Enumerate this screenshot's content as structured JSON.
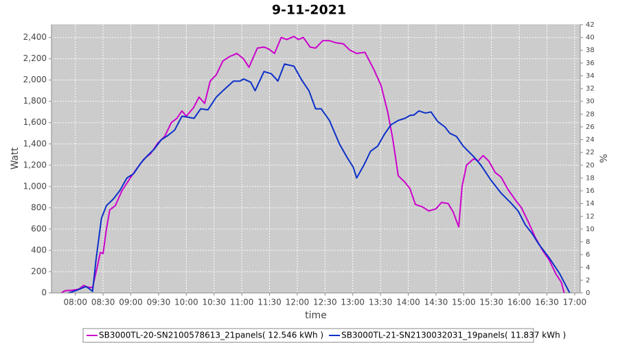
{
  "chart_data": {
    "type": "line",
    "title": "9-11-2021",
    "x_label": "time",
    "y_label": "Watt",
    "y2_label": "%",
    "xlim": [
      7.57,
      17.1
    ],
    "xticks": [
      {
        "value": 8,
        "label": "08:00"
      },
      {
        "value": 8.5,
        "label": "08:30"
      },
      {
        "value": 9,
        "label": "09:00"
      },
      {
        "value": 9.5,
        "label": "09:30"
      },
      {
        "value": 10,
        "label": "10:00"
      },
      {
        "value": 10.5,
        "label": "10:30"
      },
      {
        "value": 11,
        "label": "11:00"
      },
      {
        "value": 11.5,
        "label": "11:30"
      },
      {
        "value": 12,
        "label": "12:00"
      },
      {
        "value": 12.5,
        "label": "12:30"
      },
      {
        "value": 13,
        "label": "13:00"
      },
      {
        "value": 13.5,
        "label": "13:30"
      },
      {
        "value": 14,
        "label": "14:00"
      },
      {
        "value": 14.5,
        "label": "14:30"
      },
      {
        "value": 15,
        "label": "15:00"
      },
      {
        "value": 15.5,
        "label": "15:30"
      },
      {
        "value": 16,
        "label": "16:00"
      },
      {
        "value": 16.5,
        "label": "16:30"
      },
      {
        "value": 17,
        "label": "17:00"
      }
    ],
    "ylim": [
      0,
      2520
    ],
    "yticks": [
      0,
      200,
      400,
      600,
      800,
      {
        "value": 1000,
        "label": "1,000"
      },
      {
        "value": 1200,
        "label": "1,200"
      },
      {
        "value": 1400,
        "label": "1,400"
      },
      {
        "value": 1600,
        "label": "1,600"
      },
      {
        "value": 1800,
        "label": "1,800"
      },
      {
        "value": 2000,
        "label": "2,000"
      },
      {
        "value": 2200,
        "label": "2,200"
      },
      {
        "value": 2400,
        "label": "2,400"
      }
    ],
    "y2lim": [
      0,
      42
    ],
    "y2ticks": [
      0,
      2,
      4,
      6,
      8,
      10,
      12,
      14,
      16,
      18,
      20,
      22,
      24,
      26,
      28,
      30,
      32,
      34,
      36,
      38,
      40,
      42
    ],
    "grid": true,
    "legend": "bottom",
    "series": [
      {
        "name": "SB3000TL-20-SN2100578613_21panels( 12.546 kWh )",
        "color": "#cc00cc",
        "x": [
          7.75,
          7.81,
          7.94,
          8.06,
          8.15,
          8.22,
          8.31,
          8.4,
          8.45,
          8.5,
          8.56,
          8.62,
          8.72,
          8.84,
          8.99,
          9.11,
          9.24,
          9.36,
          9.49,
          9.61,
          9.73,
          9.83,
          9.92,
          10.0,
          10.13,
          10.23,
          10.33,
          10.43,
          10.54,
          10.66,
          10.78,
          10.91,
          11.03,
          11.13,
          11.28,
          11.4,
          11.49,
          11.59,
          11.71,
          11.81,
          11.94,
          12.02,
          12.11,
          12.23,
          12.33,
          12.46,
          12.58,
          12.7,
          12.83,
          12.95,
          13.07,
          13.22,
          13.38,
          13.51,
          13.63,
          13.72,
          13.82,
          13.94,
          14.03,
          14.13,
          14.25,
          14.37,
          14.5,
          14.6,
          14.72,
          14.81,
          14.91,
          14.97,
          15.05,
          15.18,
          15.26,
          15.35,
          15.45,
          15.57,
          15.67,
          15.8,
          15.95,
          16.04,
          16.17,
          16.29,
          16.42,
          16.54,
          16.66,
          16.76,
          16.81
        ],
        "values": [
          0,
          20,
          25,
          35,
          70,
          55,
          50,
          260,
          380,
          370,
          600,
          780,
          820,
          960,
          1080,
          1170,
          1260,
          1310,
          1410,
          1470,
          1600,
          1640,
          1710,
          1660,
          1740,
          1840,
          1780,
          1990,
          2050,
          2180,
          2220,
          2250,
          2200,
          2120,
          2300,
          2310,
          2290,
          2250,
          2400,
          2380,
          2410,
          2380,
          2400,
          2310,
          2300,
          2370,
          2370,
          2350,
          2340,
          2280,
          2250,
          2260,
          2100,
          1950,
          1700,
          1450,
          1100,
          1040,
          980,
          830,
          810,
          770,
          790,
          850,
          840,
          760,
          620,
          1000,
          1200,
          1260,
          1240,
          1290,
          1240,
          1130,
          1090,
          970,
          860,
          800,
          660,
          520,
          400,
          310,
          180,
          100,
          0
        ]
      },
      {
        "name": "SB3000TL-21-SN2130032031_19panels( 11.837 kWh )",
        "color": "#0a2fc8",
        "x": [
          7.88,
          8.0,
          8.19,
          8.25,
          8.31,
          8.37,
          8.47,
          8.56,
          8.68,
          8.8,
          8.93,
          9.05,
          9.18,
          9.3,
          9.42,
          9.55,
          9.67,
          9.79,
          9.92,
          10.04,
          10.14,
          10.26,
          10.39,
          10.54,
          10.66,
          10.85,
          10.97,
          11.03,
          11.16,
          11.24,
          11.4,
          11.53,
          11.65,
          11.77,
          11.94,
          12.08,
          12.21,
          12.33,
          12.43,
          12.58,
          12.76,
          12.89,
          13.01,
          13.07,
          13.2,
          13.32,
          13.45,
          13.57,
          13.69,
          13.82,
          13.94,
          14.04,
          14.1,
          14.19,
          14.31,
          14.41,
          14.53,
          14.66,
          14.75,
          14.87,
          14.99,
          15.18,
          15.31,
          15.49,
          15.67,
          15.86,
          15.98,
          16.11,
          16.23,
          16.35,
          16.54,
          16.73,
          16.85,
          16.91
        ],
        "values": [
          0,
          20,
          60,
          40,
          15,
          300,
          700,
          820,
          880,
          960,
          1080,
          1120,
          1220,
          1290,
          1350,
          1440,
          1480,
          1530,
          1660,
          1650,
          1640,
          1730,
          1720,
          1840,
          1900,
          1990,
          1990,
          2010,
          1980,
          1900,
          2080,
          2060,
          1990,
          2150,
          2130,
          2000,
          1900,
          1730,
          1730,
          1620,
          1400,
          1280,
          1180,
          1080,
          1200,
          1330,
          1380,
          1490,
          1580,
          1620,
          1640,
          1670,
          1670,
          1710,
          1690,
          1700,
          1610,
          1560,
          1500,
          1470,
          1380,
          1280,
          1200,
          1060,
          940,
          840,
          770,
          640,
          560,
          460,
          330,
          180,
          60,
          0
        ]
      }
    ]
  }
}
